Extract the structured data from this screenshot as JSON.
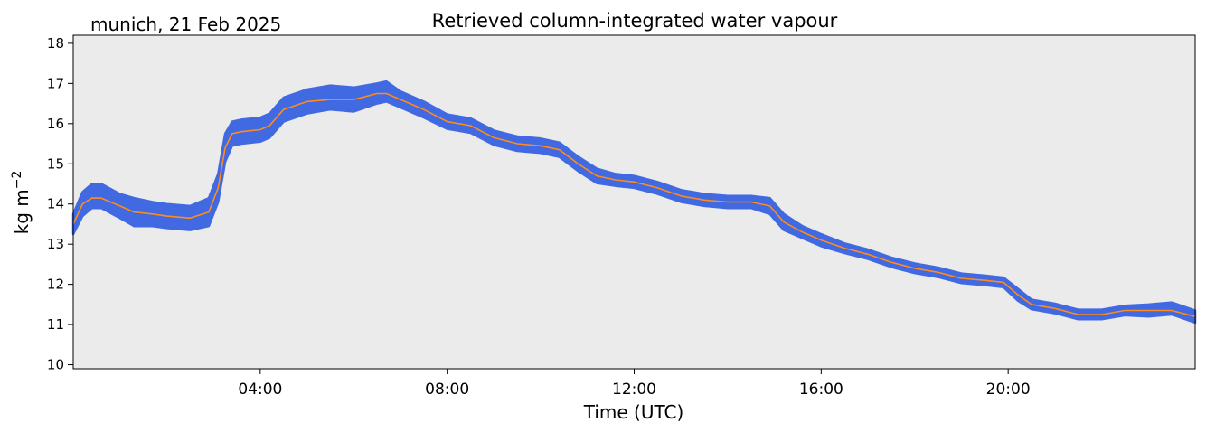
{
  "chart_data": {
    "type": "line",
    "title": "Retrieved column-integrated water vapour",
    "subtitle": "munich, 21 Feb 2025",
    "xlabel": "Time (UTC)",
    "ylabel_main": "kg m",
    "ylabel_sup": "−2",
    "xlim": [
      0,
      24
    ],
    "ylim": [
      9.9,
      18.2
    ],
    "x_ticks": [
      4,
      8,
      12,
      16,
      20
    ],
    "x_tick_labels": [
      "04:00",
      "08:00",
      "12:00",
      "16:00",
      "20:00"
    ],
    "y_ticks": [
      10,
      11,
      12,
      13,
      14,
      15,
      16,
      17,
      18
    ],
    "y_tick_labels": [
      "10",
      "11",
      "12",
      "13",
      "14",
      "15",
      "16",
      "17",
      "18"
    ],
    "grid": false,
    "plot_background": "#ebebeb",
    "series": [
      {
        "style": "scatter-band",
        "color": "#4169e1",
        "x": [
          0.0,
          0.2,
          0.4,
          0.6,
          1.0,
          1.3,
          1.7,
          2.0,
          2.5,
          2.9,
          3.1,
          3.25,
          3.4,
          3.6,
          4.0,
          4.2,
          4.5,
          5.0,
          5.5,
          6.0,
          6.5,
          6.7,
          7.0,
          7.5,
          8.0,
          8.5,
          9.0,
          9.5,
          10.0,
          10.4,
          10.8,
          11.2,
          11.6,
          12.0,
          12.5,
          13.0,
          13.5,
          14.0,
          14.5,
          14.9,
          15.2,
          15.6,
          16.0,
          16.5,
          17.0,
          17.5,
          18.0,
          18.5,
          19.0,
          19.5,
          19.9,
          20.2,
          20.5,
          21.0,
          21.5,
          22.0,
          22.5,
          23.0,
          23.5,
          24.0
        ],
        "values": [
          13.5,
          14.0,
          14.2,
          14.2,
          13.95,
          13.8,
          13.75,
          13.7,
          13.65,
          13.8,
          14.4,
          15.4,
          15.75,
          15.8,
          15.85,
          15.95,
          16.35,
          16.55,
          16.65,
          16.6,
          16.75,
          16.8,
          16.6,
          16.35,
          16.05,
          15.95,
          15.65,
          15.5,
          15.45,
          15.35,
          15.0,
          14.7,
          14.6,
          14.55,
          14.4,
          14.2,
          14.1,
          14.05,
          14.05,
          13.95,
          13.55,
          13.3,
          13.1,
          12.9,
          12.75,
          12.55,
          12.4,
          12.3,
          12.15,
          12.1,
          12.05,
          11.75,
          11.5,
          11.4,
          11.25,
          11.25,
          11.35,
          11.35,
          11.4,
          11.2
        ],
        "spread": [
          0.25,
          0.3,
          0.3,
          0.3,
          0.3,
          0.35,
          0.3,
          0.3,
          0.3,
          0.35,
          0.35,
          0.35,
          0.3,
          0.3,
          0.3,
          0.3,
          0.3,
          0.3,
          0.3,
          0.3,
          0.25,
          0.25,
          0.2,
          0.2,
          0.18,
          0.18,
          0.18,
          0.18,
          0.18,
          0.18,
          0.18,
          0.18,
          0.15,
          0.15,
          0.15,
          0.15,
          0.15,
          0.15,
          0.15,
          0.2,
          0.2,
          0.15,
          0.15,
          0.12,
          0.12,
          0.12,
          0.12,
          0.12,
          0.12,
          0.12,
          0.12,
          0.15,
          0.12,
          0.12,
          0.12,
          0.12,
          0.12,
          0.15,
          0.15,
          0.15
        ]
      },
      {
        "style": "line",
        "color": "#ff8c1a",
        "x": [
          0.0,
          0.2,
          0.4,
          0.6,
          1.0,
          1.3,
          1.7,
          2.0,
          2.5,
          2.9,
          3.1,
          3.25,
          3.4,
          3.6,
          4.0,
          4.2,
          4.5,
          5.0,
          5.5,
          6.0,
          6.5,
          6.7,
          7.0,
          7.5,
          8.0,
          8.5,
          9.0,
          9.5,
          10.0,
          10.4,
          10.8,
          11.2,
          11.6,
          12.0,
          12.5,
          13.0,
          13.5,
          14.0,
          14.5,
          14.9,
          15.2,
          15.6,
          16.0,
          16.5,
          17.0,
          17.5,
          18.0,
          18.5,
          19.0,
          19.5,
          19.9,
          20.2,
          20.5,
          21.0,
          21.5,
          22.0,
          22.5,
          23.0,
          23.5,
          24.0
        ],
        "values": [
          13.5,
          14.0,
          14.15,
          14.15,
          13.95,
          13.8,
          13.75,
          13.7,
          13.65,
          13.8,
          14.4,
          15.4,
          15.75,
          15.8,
          15.85,
          15.95,
          16.35,
          16.55,
          16.6,
          16.6,
          16.75,
          16.75,
          16.6,
          16.35,
          16.05,
          15.95,
          15.65,
          15.5,
          15.45,
          15.35,
          15.0,
          14.7,
          14.6,
          14.55,
          14.4,
          14.2,
          14.1,
          14.05,
          14.05,
          13.95,
          13.55,
          13.3,
          13.1,
          12.9,
          12.75,
          12.55,
          12.4,
          12.3,
          12.15,
          12.1,
          12.05,
          11.75,
          11.5,
          11.4,
          11.25,
          11.25,
          11.35,
          11.35,
          11.35,
          11.2
        ]
      }
    ]
  }
}
